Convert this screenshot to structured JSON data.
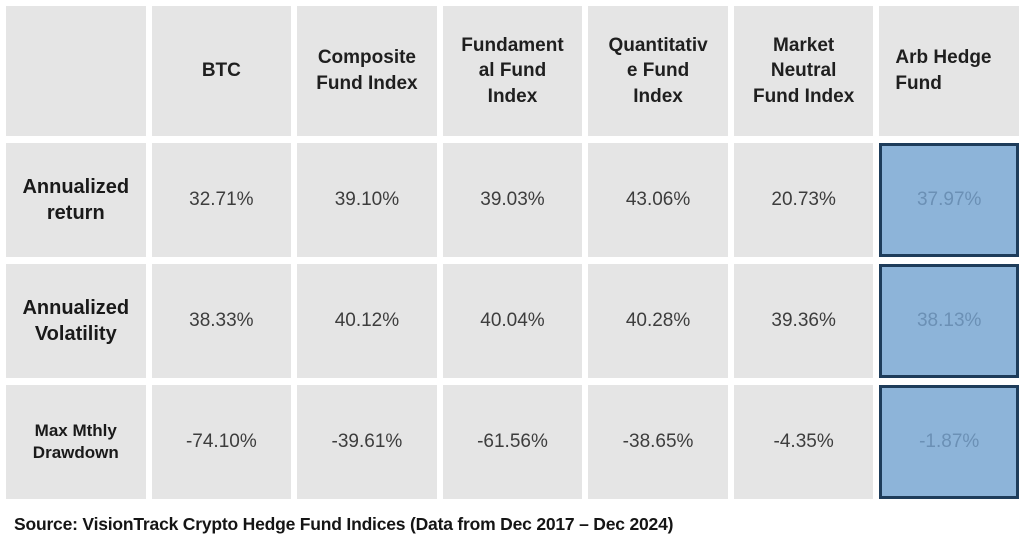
{
  "display": {
    "corner": "",
    "columns": [
      "BTC",
      "Composite\nFund Index",
      "Fundament\nal Fund\nIndex",
      "Quantitativ\ne Fund\nIndex",
      "Market\nNeutral\nFund Index",
      "Arb Hedge\nFund"
    ],
    "rows": [
      {
        "label": "Annualized\nreturn",
        "values": [
          "32.71%",
          "39.10%",
          "39.03%",
          "43.06%",
          "20.73%",
          "37.97%"
        ]
      },
      {
        "label": "Annualized\nVolatility",
        "values": [
          "38.33%",
          "40.12%",
          "40.04%",
          "40.28%",
          "39.36%",
          "38.13%"
        ]
      },
      {
        "label": "Max Mthly\nDrawdown",
        "values": [
          "-74.10%",
          "-39.61%",
          "-61.56%",
          "-38.65%",
          "-4.35%",
          "-1.87%"
        ]
      }
    ]
  },
  "chart_data": {
    "type": "table",
    "columns": [
      "BTC",
      "Composite Fund Index",
      "Fundamental Fund Index",
      "Quantitative Fund Index",
      "Market Neutral Fund Index",
      "Arb Hedge Fund"
    ],
    "rows": [
      {
        "metric": "Annualized return",
        "values": [
          "32.71%",
          "39.10%",
          "39.03%",
          "43.06%",
          "20.73%",
          "37.97%"
        ]
      },
      {
        "metric": "Annualized Volatility",
        "values": [
          "38.33%",
          "40.12%",
          "40.04%",
          "40.28%",
          "39.36%",
          "38.13%"
        ]
      },
      {
        "metric": "Max Mthly Drawdown",
        "values": [
          "-74.10%",
          "-39.61%",
          "-61.56%",
          "-38.65%",
          "-4.35%",
          "-1.87%"
        ]
      }
    ],
    "highlighted_column": "Arb Hedge Fund",
    "source": "Source: VisionTrack Crypto Hedge Fund Indices (Data from Dec 2017 – Dec 2024)"
  },
  "source": "Source: VisionTrack Crypto Hedge Fund Indices (Data from Dec 2017 – Dec 2024)",
  "colors": {
    "cell_background": "#e5e5e5",
    "highlight_fill": "#8db4d9",
    "highlight_border": "#1e3c5a",
    "highlight_text": "#6b90b5",
    "header_text": "#1f1f1f",
    "value_text": "#3d3d3d"
  }
}
